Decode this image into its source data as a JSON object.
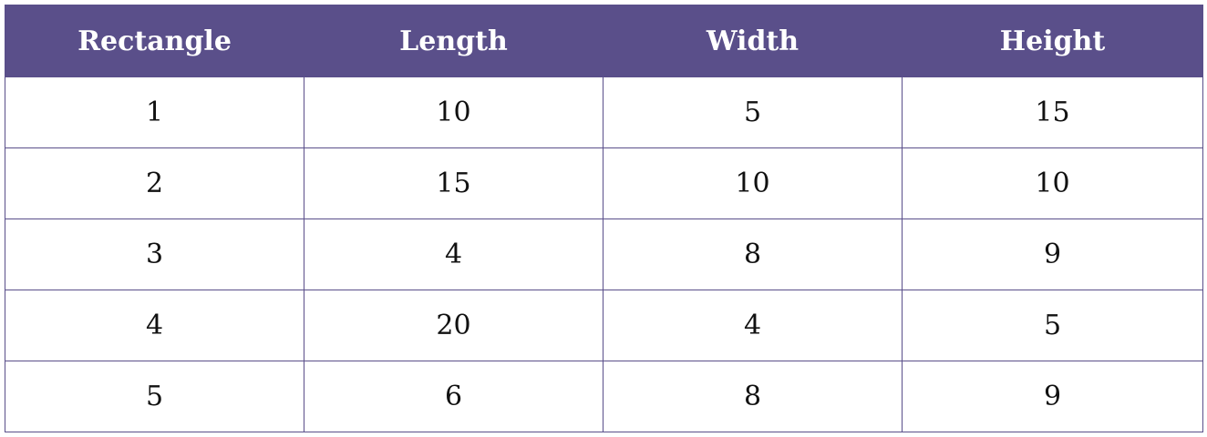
{
  "table": {
    "headers": [
      "Rectangle",
      "Length",
      "Width",
      "Height"
    ],
    "rows": [
      [
        "1",
        "10",
        "5",
        "15"
      ],
      [
        "2",
        "15",
        "10",
        "10"
      ],
      [
        "3",
        "4",
        "8",
        "9"
      ],
      [
        "4",
        "20",
        "4",
        "5"
      ],
      [
        "5",
        "6",
        "8",
        "9"
      ]
    ]
  },
  "colors": {
    "header_background": "#5a4f8a",
    "header_text": "#ffffff",
    "border": "#5a4f8a",
    "cell_text": "#111111"
  }
}
